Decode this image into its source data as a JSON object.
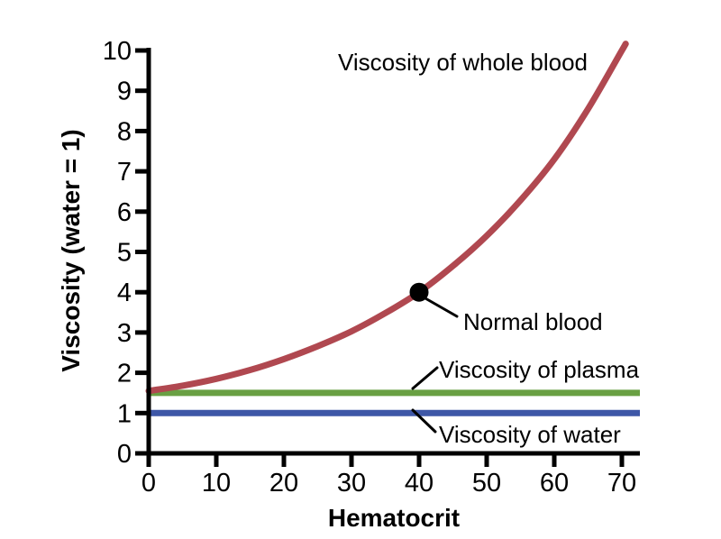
{
  "figure": {
    "background": "#ffffff",
    "text_color": "#000000"
  },
  "chart_data": {
    "type": "line",
    "title": "",
    "xlabel": "Hematocrit",
    "ylabel": "Viscosity (water = 1)",
    "xlim": [
      0,
      72.7
    ],
    "ylim": [
      0,
      10.1
    ],
    "x_ticks": [
      0,
      10,
      20,
      30,
      40,
      50,
      60,
      70
    ],
    "y_ticks": [
      0,
      1,
      2,
      3,
      4,
      5,
      6,
      7,
      8,
      9,
      10
    ],
    "grid": false,
    "legend": "direct-labels",
    "series": [
      {
        "name": "Viscosity of whole blood",
        "type": "curve",
        "color": "#b04850",
        "points": [
          [
            0,
            1.55
          ],
          [
            5,
            1.68
          ],
          [
            10,
            1.85
          ],
          [
            15,
            2.07
          ],
          [
            20,
            2.34
          ],
          [
            25,
            2.66
          ],
          [
            30,
            3.03
          ],
          [
            35,
            3.48
          ],
          [
            40,
            4.0
          ],
          [
            45,
            4.65
          ],
          [
            50,
            5.4
          ],
          [
            55,
            6.28
          ],
          [
            60,
            7.3
          ],
          [
            65,
            8.55
          ],
          [
            70,
            10.0
          ],
          [
            70.5,
            10.15
          ]
        ]
      },
      {
        "name": "Viscosity of plasma",
        "type": "hline",
        "color": "#69a043",
        "value": 1.5
      },
      {
        "name": "Viscosity of water",
        "type": "hline",
        "color": "#3e57a7",
        "value": 1.0
      }
    ],
    "annotations": {
      "whole_blood": {
        "text": "Viscosity of whole blood"
      },
      "normal_blood": {
        "text": "Normal blood",
        "point_x": 40,
        "point_y": 4,
        "marker": "black-dot",
        "marker_color": "#000000"
      },
      "plasma": {
        "text": "Viscosity of plasma"
      },
      "water": {
        "text": "Viscosity of water"
      }
    }
  }
}
